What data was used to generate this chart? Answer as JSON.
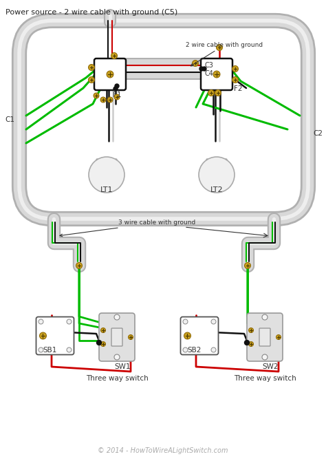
{
  "bg_color": "#ffffff",
  "title_text": "Power source - 2 wire cable with ground (C5)",
  "title_fontsize": 8.0,
  "title_color": "#222222",
  "copyright_text": "© 2014 - HowToWireALightSwitch.com",
  "copyright_color": "#aaaaaa",
  "copyright_fontsize": 7.0,
  "label_fontsize": 7.5,
  "label_color": "#333333",
  "wire_black": "#111111",
  "wire_red": "#cc0000",
  "wire_green": "#00bb00",
  "wire_white": "#cccccc",
  "cable_jacket": "#cccccc",
  "box_fill": "#ffffff",
  "box_edge": "#111111",
  "conduit_fill": "#d8d8d8",
  "conduit_edge": "#b0b0b0",
  "gold_color": "#c8a020",
  "switch_fill": "#cccccc",
  "switch_edge": "#888888",
  "three_way_label": "Three way switch",
  "label_C1": "C1",
  "label_C2": "C2",
  "label_C3": "C3",
  "label_C4": "C4",
  "label_F1": "F1",
  "label_F2": "F2",
  "label_LT1": "LT1",
  "label_LT2": "LT2",
  "label_SB1": "SB1",
  "label_SB2": "SB2",
  "label_SW1": "SW1",
  "label_SW2": "SW2",
  "label_2wire": "2 wire cable with ground",
  "label_3wire": "3 wire cable with ground"
}
